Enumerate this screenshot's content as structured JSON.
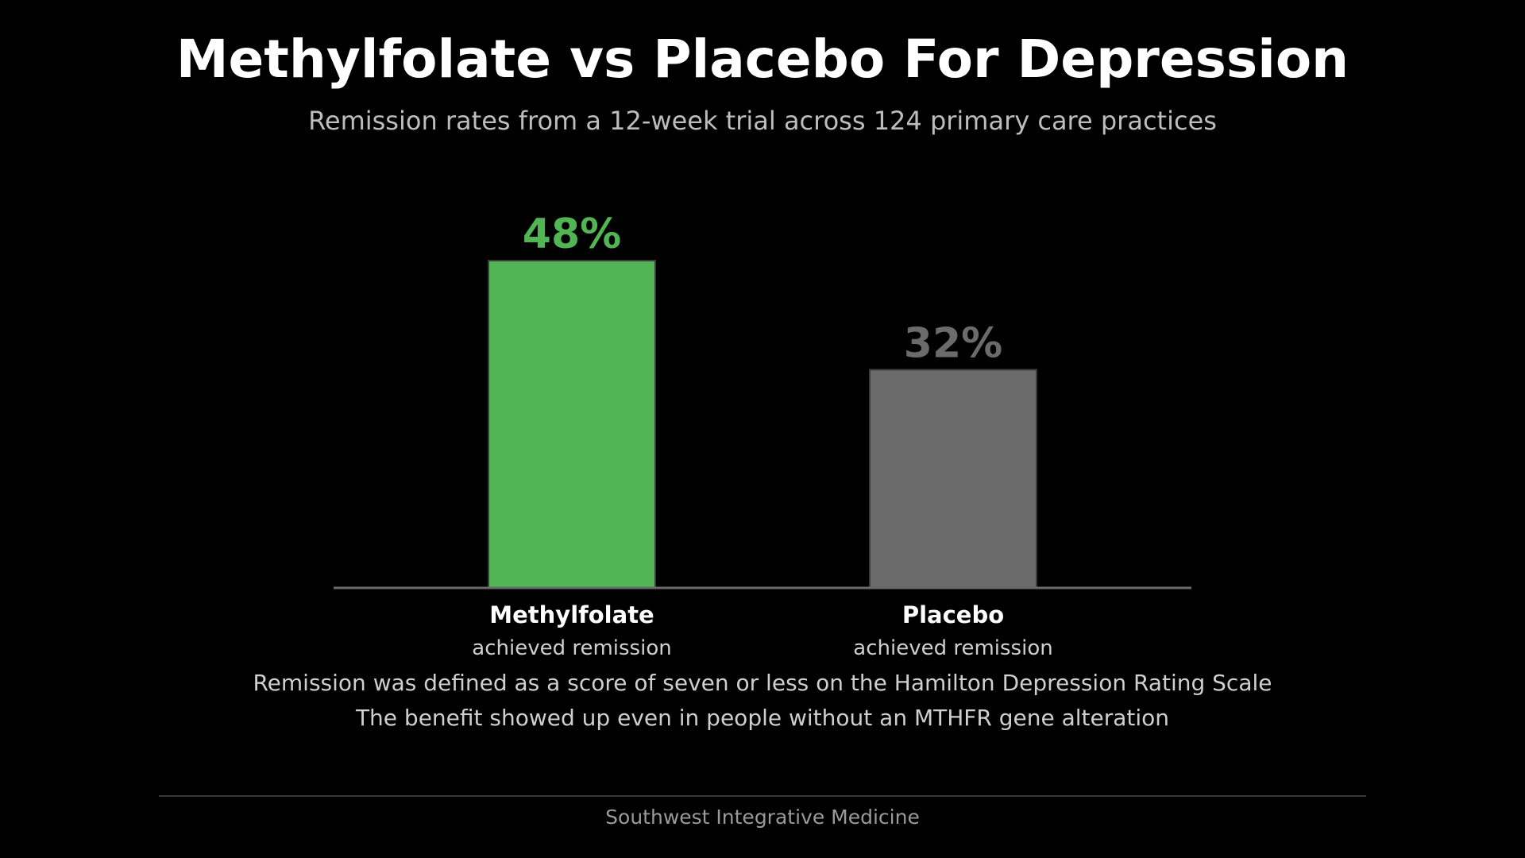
{
  "header": {
    "title": "Methylfolate vs Placebo For Depression",
    "subtitle": "Remission rates from a 12-week trial across 124 primary care practices"
  },
  "chart_data": {
    "type": "bar",
    "title": "Methylfolate vs Placebo For Depression",
    "subtitle": "Remission rates from a 12-week trial across 124 primary care practices",
    "categories": [
      "Methylfolate",
      "Placebo"
    ],
    "category_sublabels": [
      "achieved remission",
      "achieved remission"
    ],
    "values": [
      48,
      32
    ],
    "value_labels": [
      "48%",
      "32%"
    ],
    "colors": [
      "#52b553",
      "#6b6b6b"
    ],
    "label_colors": [
      "#52b553",
      "#6b6b6b"
    ],
    "ylim": [
      0,
      48
    ],
    "grid": false,
    "xlabel": "",
    "ylabel": ""
  },
  "notes": [
    "Remission was defined as a score of seven or less on the Hamilton Depression Rating Scale",
    "The benefit showed up even in people without an MTHFR gene alteration"
  ],
  "footer": {
    "text": "Southwest Integrative Medicine"
  }
}
